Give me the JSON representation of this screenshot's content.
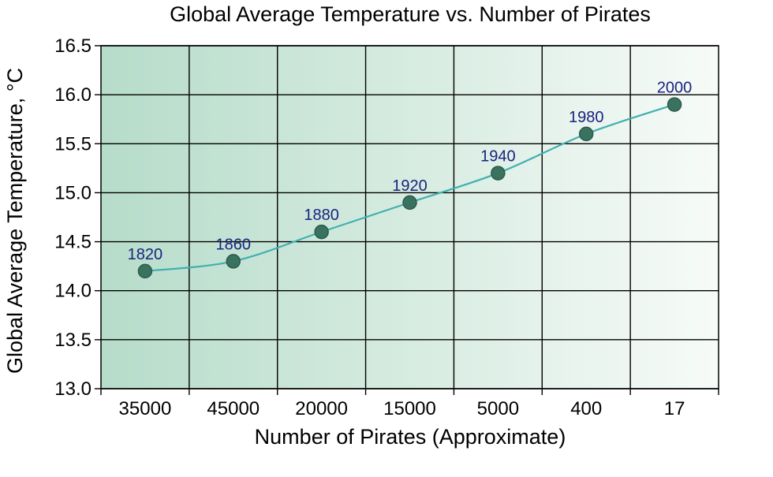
{
  "chart_data": {
    "type": "line",
    "title": "Global Average Temperature vs. Number of Pirates",
    "xlabel": "Number of Pirates (Approximate)",
    "ylabel": "Global Average Temperature, °C",
    "categories": [
      "35000",
      "45000",
      "20000",
      "15000",
      "5000",
      "400",
      "17"
    ],
    "series": [
      {
        "values": [
          14.2,
          14.3,
          14.6,
          14.9,
          15.2,
          15.6,
          15.9
        ],
        "point_labels": [
          "1820",
          "1860",
          "1880",
          "1920",
          "1940",
          "1980",
          "2000"
        ]
      }
    ],
    "ylim": [
      13.0,
      16.5
    ],
    "yticks": [
      "13.0",
      "13.5",
      "14.0",
      "14.5",
      "15.0",
      "15.5",
      "16.0",
      "16.5"
    ],
    "grid": true,
    "legend": "none",
    "colors": {
      "line": "#41b0b0",
      "marker": "#3a7260",
      "marker_stroke": "#2c5a4b",
      "point_label": "#1a237e",
      "gradient_left": "#b6dcca",
      "gradient_right": "#f7fbf8",
      "grid": "#000000"
    }
  }
}
